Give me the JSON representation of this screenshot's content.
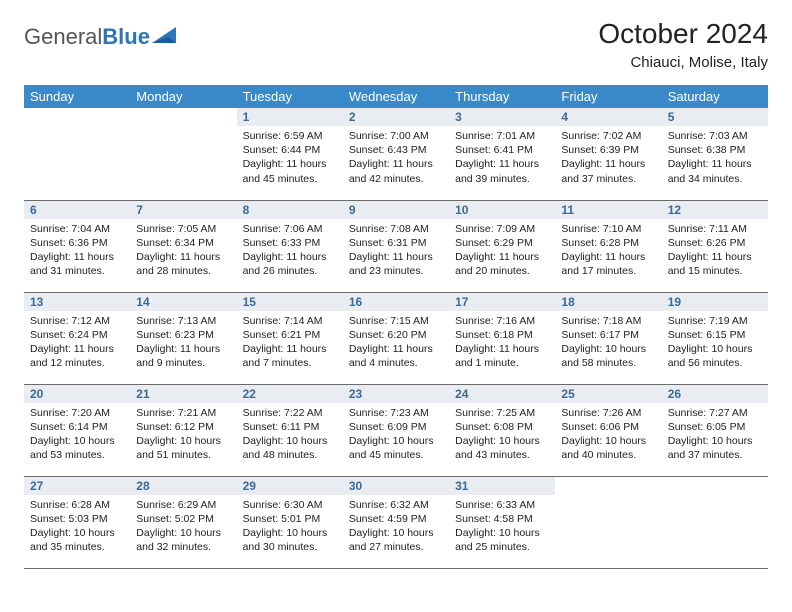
{
  "brand": {
    "part1": "General",
    "part2": "Blue",
    "text_color": "#555555",
    "accent_color": "#2f75b5"
  },
  "title": "October 2024",
  "location": "Chiauci, Molise, Italy",
  "colors": {
    "header_bg": "#3a8ac9",
    "header_fg": "#ffffff",
    "daynum_bg": "#e9edf1",
    "daynum_fg": "#3a6a96",
    "rule": "#6a6a6a",
    "body_text": "#222222",
    "page_bg": "#ffffff"
  },
  "weekdays": [
    "Sunday",
    "Monday",
    "Tuesday",
    "Wednesday",
    "Thursday",
    "Friday",
    "Saturday"
  ],
  "weeks": [
    [
      null,
      null,
      {
        "n": "1",
        "sr": "Sunrise: 6:59 AM",
        "ss": "Sunset: 6:44 PM",
        "dl": "Daylight: 11 hours and 45 minutes."
      },
      {
        "n": "2",
        "sr": "Sunrise: 7:00 AM",
        "ss": "Sunset: 6:43 PM",
        "dl": "Daylight: 11 hours and 42 minutes."
      },
      {
        "n": "3",
        "sr": "Sunrise: 7:01 AM",
        "ss": "Sunset: 6:41 PM",
        "dl": "Daylight: 11 hours and 39 minutes."
      },
      {
        "n": "4",
        "sr": "Sunrise: 7:02 AM",
        "ss": "Sunset: 6:39 PM",
        "dl": "Daylight: 11 hours and 37 minutes."
      },
      {
        "n": "5",
        "sr": "Sunrise: 7:03 AM",
        "ss": "Sunset: 6:38 PM",
        "dl": "Daylight: 11 hours and 34 minutes."
      }
    ],
    [
      {
        "n": "6",
        "sr": "Sunrise: 7:04 AM",
        "ss": "Sunset: 6:36 PM",
        "dl": "Daylight: 11 hours and 31 minutes."
      },
      {
        "n": "7",
        "sr": "Sunrise: 7:05 AM",
        "ss": "Sunset: 6:34 PM",
        "dl": "Daylight: 11 hours and 28 minutes."
      },
      {
        "n": "8",
        "sr": "Sunrise: 7:06 AM",
        "ss": "Sunset: 6:33 PM",
        "dl": "Daylight: 11 hours and 26 minutes."
      },
      {
        "n": "9",
        "sr": "Sunrise: 7:08 AM",
        "ss": "Sunset: 6:31 PM",
        "dl": "Daylight: 11 hours and 23 minutes."
      },
      {
        "n": "10",
        "sr": "Sunrise: 7:09 AM",
        "ss": "Sunset: 6:29 PM",
        "dl": "Daylight: 11 hours and 20 minutes."
      },
      {
        "n": "11",
        "sr": "Sunrise: 7:10 AM",
        "ss": "Sunset: 6:28 PM",
        "dl": "Daylight: 11 hours and 17 minutes."
      },
      {
        "n": "12",
        "sr": "Sunrise: 7:11 AM",
        "ss": "Sunset: 6:26 PM",
        "dl": "Daylight: 11 hours and 15 minutes."
      }
    ],
    [
      {
        "n": "13",
        "sr": "Sunrise: 7:12 AM",
        "ss": "Sunset: 6:24 PM",
        "dl": "Daylight: 11 hours and 12 minutes."
      },
      {
        "n": "14",
        "sr": "Sunrise: 7:13 AM",
        "ss": "Sunset: 6:23 PM",
        "dl": "Daylight: 11 hours and 9 minutes."
      },
      {
        "n": "15",
        "sr": "Sunrise: 7:14 AM",
        "ss": "Sunset: 6:21 PM",
        "dl": "Daylight: 11 hours and 7 minutes."
      },
      {
        "n": "16",
        "sr": "Sunrise: 7:15 AM",
        "ss": "Sunset: 6:20 PM",
        "dl": "Daylight: 11 hours and 4 minutes."
      },
      {
        "n": "17",
        "sr": "Sunrise: 7:16 AM",
        "ss": "Sunset: 6:18 PM",
        "dl": "Daylight: 11 hours and 1 minute."
      },
      {
        "n": "18",
        "sr": "Sunrise: 7:18 AM",
        "ss": "Sunset: 6:17 PM",
        "dl": "Daylight: 10 hours and 58 minutes."
      },
      {
        "n": "19",
        "sr": "Sunrise: 7:19 AM",
        "ss": "Sunset: 6:15 PM",
        "dl": "Daylight: 10 hours and 56 minutes."
      }
    ],
    [
      {
        "n": "20",
        "sr": "Sunrise: 7:20 AM",
        "ss": "Sunset: 6:14 PM",
        "dl": "Daylight: 10 hours and 53 minutes."
      },
      {
        "n": "21",
        "sr": "Sunrise: 7:21 AM",
        "ss": "Sunset: 6:12 PM",
        "dl": "Daylight: 10 hours and 51 minutes."
      },
      {
        "n": "22",
        "sr": "Sunrise: 7:22 AM",
        "ss": "Sunset: 6:11 PM",
        "dl": "Daylight: 10 hours and 48 minutes."
      },
      {
        "n": "23",
        "sr": "Sunrise: 7:23 AM",
        "ss": "Sunset: 6:09 PM",
        "dl": "Daylight: 10 hours and 45 minutes."
      },
      {
        "n": "24",
        "sr": "Sunrise: 7:25 AM",
        "ss": "Sunset: 6:08 PM",
        "dl": "Daylight: 10 hours and 43 minutes."
      },
      {
        "n": "25",
        "sr": "Sunrise: 7:26 AM",
        "ss": "Sunset: 6:06 PM",
        "dl": "Daylight: 10 hours and 40 minutes."
      },
      {
        "n": "26",
        "sr": "Sunrise: 7:27 AM",
        "ss": "Sunset: 6:05 PM",
        "dl": "Daylight: 10 hours and 37 minutes."
      }
    ],
    [
      {
        "n": "27",
        "sr": "Sunrise: 6:28 AM",
        "ss": "Sunset: 5:03 PM",
        "dl": "Daylight: 10 hours and 35 minutes."
      },
      {
        "n": "28",
        "sr": "Sunrise: 6:29 AM",
        "ss": "Sunset: 5:02 PM",
        "dl": "Daylight: 10 hours and 32 minutes."
      },
      {
        "n": "29",
        "sr": "Sunrise: 6:30 AM",
        "ss": "Sunset: 5:01 PM",
        "dl": "Daylight: 10 hours and 30 minutes."
      },
      {
        "n": "30",
        "sr": "Sunrise: 6:32 AM",
        "ss": "Sunset: 4:59 PM",
        "dl": "Daylight: 10 hours and 27 minutes."
      },
      {
        "n": "31",
        "sr": "Sunrise: 6:33 AM",
        "ss": "Sunset: 4:58 PM",
        "dl": "Daylight: 10 hours and 25 minutes."
      },
      null,
      null
    ]
  ]
}
